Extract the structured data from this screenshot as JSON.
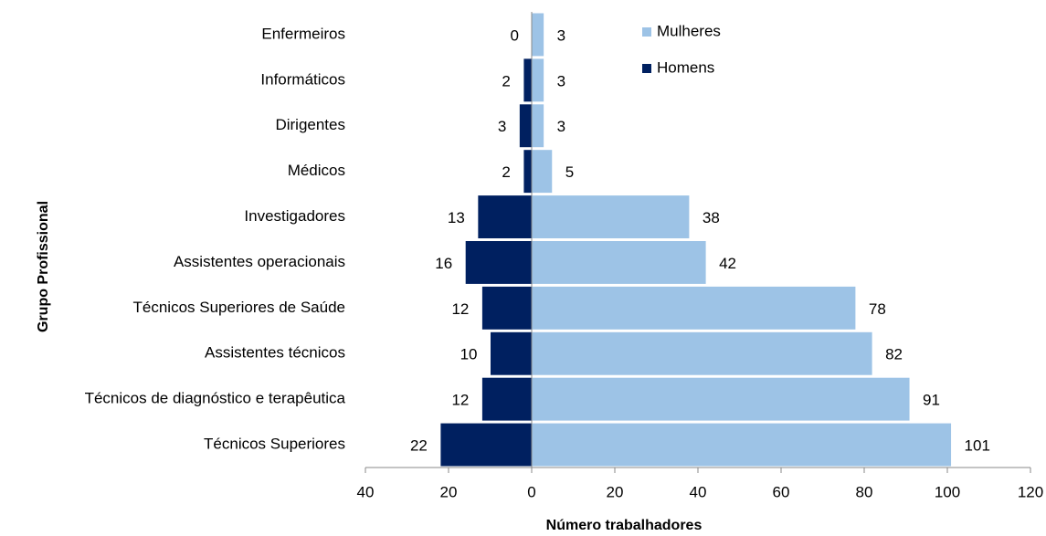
{
  "chart_data": {
    "type": "pyramid-bar",
    "categories": [
      "Enfermeiros",
      "Informáticos",
      "Dirigentes",
      "Médicos",
      "Investigadores",
      "Assistentes operacionais",
      "Técnicos Superiores de Saúde",
      "Assistentes técnicos",
      "Técnicos de diagnóstico e terapêutica",
      "Técnicos Superiores"
    ],
    "series": [
      {
        "name": "Mulheres",
        "color": "#9dc3e6",
        "values": [
          3,
          3,
          3,
          5,
          38,
          42,
          78,
          82,
          91,
          101
        ]
      },
      {
        "name": "Homens",
        "color": "#002060",
        "values": [
          0,
          -2,
          -3,
          -2,
          -13,
          -16,
          -12,
          -10,
          -12,
          -22
        ],
        "value_labels": [
          "0",
          "2",
          "3",
          "2",
          "13",
          "16",
          "12",
          "10",
          "12",
          "22"
        ]
      }
    ],
    "xlabel": "Número trabalhadores",
    "ylabel": "Grupo Profissional",
    "xlim": [
      -40,
      120
    ],
    "xticks": [
      {
        "value": -40,
        "label": "40"
      },
      {
        "value": -20,
        "label": "20"
      },
      0,
      20,
      40,
      60,
      80,
      100,
      120
    ],
    "legend": "top"
  }
}
